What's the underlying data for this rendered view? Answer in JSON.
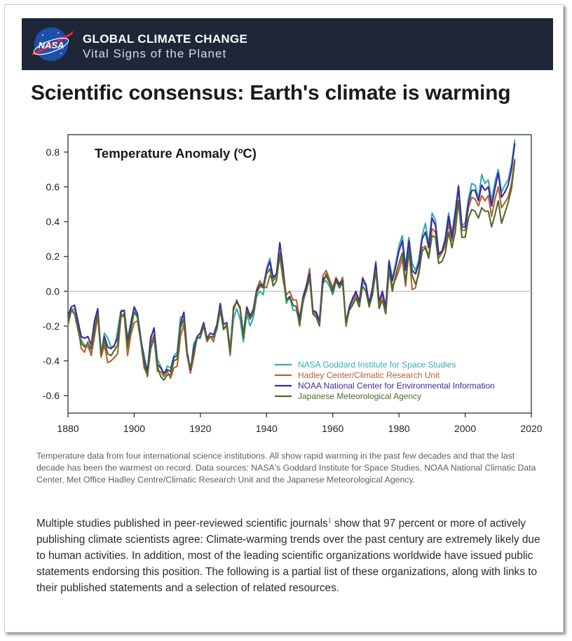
{
  "banner": {
    "logo_text": "NASA",
    "title": "GLOBAL CLIMATE CHANGE",
    "subtitle": "Vital Signs of the Planet",
    "bg_color": "#1d2738"
  },
  "headline": "Scientific consensus: Earth's climate is warming",
  "chart_data": {
    "type": "line",
    "title": "Temperature Anomaly (ºC)",
    "xlabel": "",
    "ylabel": "",
    "xlim": [
      1880,
      2020
    ],
    "ylim": [
      -0.7,
      0.9
    ],
    "x_ticks": [
      1880,
      1900,
      1920,
      1940,
      1960,
      1980,
      2000,
      2020
    ],
    "y_ticks": [
      -0.6,
      -0.4,
      -0.2,
      0.0,
      0.2,
      0.4,
      0.6,
      0.8
    ],
    "x_tick_labels": [
      "1880",
      "1900",
      "1920",
      "1940",
      "1960",
      "1980",
      "2000",
      "2020"
    ],
    "y_tick_labels": [
      "-0.6",
      "-0.4",
      "-0.2",
      "0.0",
      "0.2",
      "0.4",
      "0.6",
      "0.8"
    ],
    "grid": false,
    "zero_line": true,
    "legend_position": "bottom-right",
    "x": [
      1880,
      1881,
      1882,
      1883,
      1884,
      1885,
      1886,
      1887,
      1888,
      1889,
      1890,
      1891,
      1892,
      1893,
      1894,
      1895,
      1896,
      1897,
      1898,
      1899,
      1900,
      1901,
      1902,
      1903,
      1904,
      1905,
      1906,
      1907,
      1908,
      1909,
      1910,
      1911,
      1912,
      1913,
      1914,
      1915,
      1916,
      1917,
      1918,
      1919,
      1920,
      1921,
      1922,
      1923,
      1924,
      1925,
      1926,
      1927,
      1928,
      1929,
      1930,
      1931,
      1932,
      1933,
      1934,
      1935,
      1936,
      1937,
      1938,
      1939,
      1940,
      1941,
      1942,
      1943,
      1944,
      1945,
      1946,
      1947,
      1948,
      1949,
      1950,
      1951,
      1952,
      1953,
      1954,
      1955,
      1956,
      1957,
      1958,
      1959,
      1960,
      1961,
      1962,
      1963,
      1964,
      1965,
      1966,
      1967,
      1968,
      1969,
      1970,
      1971,
      1972,
      1973,
      1974,
      1975,
      1976,
      1977,
      1978,
      1979,
      1980,
      1981,
      1982,
      1983,
      1984,
      1985,
      1986,
      1987,
      1988,
      1989,
      1990,
      1991,
      1992,
      1993,
      1994,
      1995,
      1996,
      1997,
      1998,
      1999,
      2000,
      2001,
      2002,
      2003,
      2004,
      2005,
      2006,
      2007,
      2008,
      2009,
      2010,
      2011,
      2012,
      2013,
      2014,
      2015
    ],
    "series": [
      {
        "name": "NASA Goddard Institute for Space Studies",
        "color": "#3aa9b0",
        "values": [
          -0.2,
          -0.11,
          -0.1,
          -0.2,
          -0.28,
          -0.31,
          -0.32,
          -0.36,
          -0.18,
          -0.11,
          -0.37,
          -0.24,
          -0.27,
          -0.32,
          -0.32,
          -0.23,
          -0.11,
          -0.11,
          -0.27,
          -0.18,
          -0.09,
          -0.15,
          -0.28,
          -0.37,
          -0.47,
          -0.26,
          -0.22,
          -0.39,
          -0.43,
          -0.48,
          -0.43,
          -0.44,
          -0.37,
          -0.35,
          -0.15,
          -0.14,
          -0.36,
          -0.46,
          -0.3,
          -0.27,
          -0.27,
          -0.19,
          -0.28,
          -0.26,
          -0.27,
          -0.22,
          -0.11,
          -0.22,
          -0.2,
          -0.36,
          -0.16,
          -0.1,
          -0.16,
          -0.29,
          -0.13,
          -0.2,
          -0.15,
          -0.03,
          -0.0,
          -0.02,
          0.13,
          0.19,
          0.07,
          0.09,
          0.2,
          0.09,
          -0.07,
          -0.03,
          -0.11,
          -0.11,
          -0.18,
          -0.07,
          0.01,
          0.08,
          -0.13,
          -0.14,
          -0.19,
          0.05,
          0.06,
          0.03,
          -0.02,
          0.06,
          0.03,
          0.05,
          -0.2,
          -0.11,
          -0.06,
          -0.02,
          -0.08,
          0.05,
          0.03,
          -0.08,
          0.01,
          0.16,
          -0.07,
          -0.01,
          -0.1,
          0.18,
          0.07,
          0.16,
          0.26,
          0.32,
          0.14,
          0.31,
          0.16,
          0.12,
          0.18,
          0.32,
          0.39,
          0.27,
          0.45,
          0.41,
          0.22,
          0.23,
          0.31,
          0.45,
          0.33,
          0.46,
          0.61,
          0.38,
          0.39,
          0.53,
          0.62,
          0.61,
          0.53,
          0.67,
          0.62,
          0.64,
          0.52,
          0.63,
          0.7,
          0.57,
          0.61,
          0.64,
          0.73,
          0.87
        ]
      },
      {
        "name": "Hadley Center/Climatic Research Unit",
        "color": "#b5602f",
        "values": [
          -0.19,
          -0.1,
          -0.13,
          -0.2,
          -0.33,
          -0.35,
          -0.29,
          -0.37,
          -0.26,
          -0.14,
          -0.38,
          -0.31,
          -0.41,
          -0.4,
          -0.38,
          -0.36,
          -0.15,
          -0.14,
          -0.37,
          -0.25,
          -0.18,
          -0.17,
          -0.29,
          -0.44,
          -0.48,
          -0.3,
          -0.25,
          -0.46,
          -0.46,
          -0.49,
          -0.46,
          -0.5,
          -0.44,
          -0.43,
          -0.26,
          -0.19,
          -0.37,
          -0.47,
          -0.38,
          -0.26,
          -0.24,
          -0.2,
          -0.29,
          -0.26,
          -0.29,
          -0.2,
          -0.08,
          -0.21,
          -0.2,
          -0.37,
          -0.09,
          -0.06,
          -0.09,
          -0.25,
          -0.11,
          -0.15,
          -0.1,
          0.01,
          0.06,
          0.03,
          0.02,
          0.09,
          0.06,
          0.08,
          0.2,
          0.06,
          -0.02,
          0.0,
          -0.05,
          -0.05,
          -0.16,
          -0.03,
          0.03,
          0.13,
          -0.12,
          -0.13,
          -0.17,
          0.09,
          0.12,
          0.07,
          0.02,
          0.08,
          0.04,
          0.08,
          -0.2,
          -0.1,
          -0.05,
          -0.02,
          -0.07,
          0.08,
          0.04,
          -0.08,
          0.02,
          0.17,
          -0.08,
          -0.02,
          -0.11,
          0.13,
          0.03,
          0.07,
          0.12,
          0.19,
          0.03,
          0.24,
          0.01,
          0.02,
          0.12,
          0.25,
          0.26,
          0.2,
          0.36,
          0.34,
          0.19,
          0.22,
          0.26,
          0.39,
          0.29,
          0.4,
          0.6,
          0.35,
          0.35,
          0.48,
          0.54,
          0.53,
          0.49,
          0.55,
          0.52,
          0.55,
          0.43,
          0.53,
          0.6,
          0.48,
          0.51,
          0.54,
          0.62,
          0.76
        ]
      },
      {
        "name": "NOAA National Center for Environmental Information",
        "color": "#3c2a9e",
        "values": [
          -0.14,
          -0.09,
          -0.08,
          -0.17,
          -0.26,
          -0.27,
          -0.26,
          -0.31,
          -0.17,
          -0.1,
          -0.36,
          -0.26,
          -0.32,
          -0.33,
          -0.31,
          -0.27,
          -0.12,
          -0.11,
          -0.29,
          -0.19,
          -0.09,
          -0.13,
          -0.27,
          -0.39,
          -0.46,
          -0.27,
          -0.21,
          -0.42,
          -0.44,
          -0.47,
          -0.45,
          -0.46,
          -0.38,
          -0.37,
          -0.19,
          -0.12,
          -0.35,
          -0.45,
          -0.33,
          -0.26,
          -0.24,
          -0.18,
          -0.27,
          -0.24,
          -0.25,
          -0.19,
          -0.07,
          -0.19,
          -0.18,
          -0.34,
          -0.1,
          -0.06,
          -0.1,
          -0.25,
          -0.09,
          -0.14,
          -0.11,
          0.0,
          0.04,
          0.03,
          0.12,
          0.17,
          0.08,
          0.1,
          0.28,
          0.13,
          -0.05,
          -0.03,
          -0.08,
          -0.09,
          -0.16,
          -0.04,
          0.03,
          0.1,
          -0.11,
          -0.12,
          -0.17,
          0.07,
          0.09,
          0.05,
          0.0,
          0.07,
          0.04,
          0.06,
          -0.18,
          -0.09,
          -0.04,
          0.0,
          -0.06,
          0.07,
          0.04,
          -0.07,
          0.02,
          0.16,
          -0.06,
          0.0,
          -0.09,
          0.17,
          0.06,
          0.14,
          0.23,
          0.29,
          0.12,
          0.29,
          0.12,
          0.1,
          0.16,
          0.3,
          0.34,
          0.25,
          0.42,
          0.38,
          0.21,
          0.23,
          0.29,
          0.43,
          0.31,
          0.44,
          0.6,
          0.37,
          0.37,
          0.51,
          0.58,
          0.58,
          0.52,
          0.61,
          0.58,
          0.6,
          0.49,
          0.59,
          0.68,
          0.54,
          0.57,
          0.61,
          0.7,
          0.85
        ]
      },
      {
        "name": "Japanese Meteorological Agency",
        "color": "#4e6b2a",
        "values": [
          -0.17,
          -0.11,
          -0.13,
          -0.22,
          -0.3,
          -0.32,
          -0.3,
          -0.33,
          -0.22,
          -0.13,
          -0.36,
          -0.28,
          -0.36,
          -0.37,
          -0.34,
          -0.31,
          -0.14,
          -0.13,
          -0.32,
          -0.22,
          -0.12,
          -0.15,
          -0.29,
          -0.41,
          -0.49,
          -0.33,
          -0.27,
          -0.43,
          -0.49,
          -0.51,
          -0.48,
          -0.48,
          -0.4,
          -0.39,
          -0.21,
          -0.16,
          -0.37,
          -0.44,
          -0.36,
          -0.27,
          -0.26,
          -0.2,
          -0.28,
          -0.26,
          -0.26,
          -0.21,
          -0.1,
          -0.22,
          -0.19,
          -0.35,
          -0.11,
          -0.05,
          -0.1,
          -0.27,
          -0.11,
          -0.16,
          -0.13,
          -0.01,
          0.03,
          0.02,
          0.1,
          0.13,
          0.03,
          0.06,
          0.22,
          0.1,
          -0.05,
          -0.04,
          -0.08,
          -0.09,
          -0.2,
          -0.05,
          0.0,
          0.08,
          -0.13,
          -0.15,
          -0.2,
          0.04,
          0.1,
          0.05,
          -0.01,
          0.06,
          0.02,
          0.05,
          -0.18,
          -0.11,
          -0.08,
          -0.04,
          -0.09,
          0.03,
          0.0,
          -0.09,
          -0.02,
          0.12,
          -0.1,
          -0.05,
          -0.13,
          0.12,
          0.0,
          0.09,
          0.16,
          0.22,
          0.05,
          0.23,
          0.09,
          0.04,
          0.1,
          0.23,
          0.25,
          0.19,
          0.32,
          0.31,
          0.16,
          0.17,
          0.22,
          0.34,
          0.25,
          0.34,
          0.52,
          0.31,
          0.31,
          0.42,
          0.47,
          0.46,
          0.42,
          0.48,
          0.46,
          0.46,
          0.37,
          0.44,
          0.52,
          0.39,
          0.45,
          0.51,
          0.59,
          0.75
        ]
      }
    ]
  },
  "caption": "Temperature data from four international science institutions. All show rapid warming in the past few decades and that the last decade has been the warmest on record. Data sources: NASA's Goddard Institute for Space Studies, NOAA National Climatic Data Center, Met Office Hadley Centre/Climatic Research Unit and the Japanese Meteorological Agency.",
  "body": {
    "text_before": "Multiple studies published in peer-reviewed scientific journals",
    "footnote": "1",
    "text_after": " show that 97 percent or more of actively publishing climate scientists agree: Climate-warming trends over the past century are extremely likely due to human activities. In addition, most of the leading scientific organizations worldwide have issued public statements endorsing this position. The following is a partial list of these organizations, along with links to their published statements and a selection of related resources."
  }
}
